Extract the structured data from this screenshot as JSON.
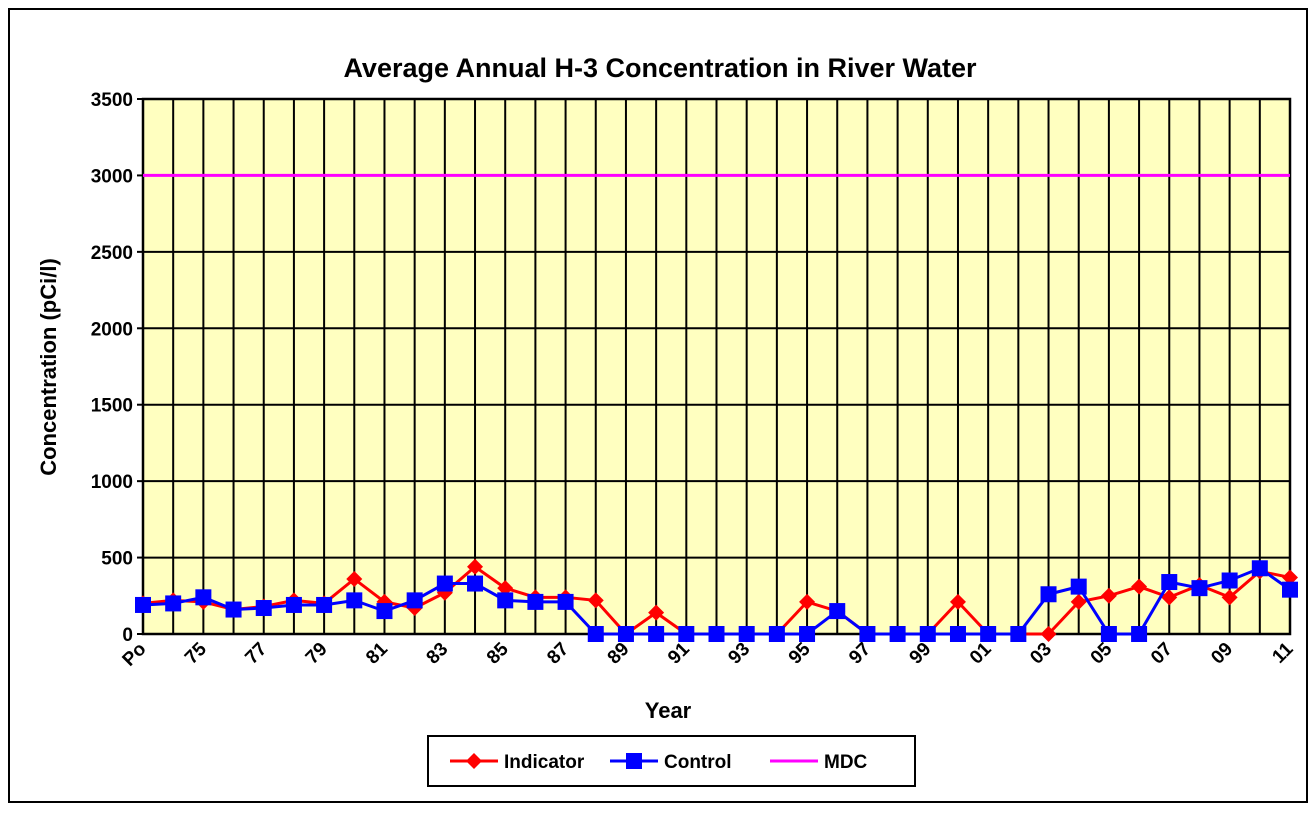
{
  "chart_data": {
    "type": "line",
    "title": "Average Annual H-3 Concentration in River Water",
    "x_label": "Year",
    "y_label": "Concentration (pCi/l)",
    "categories": [
      "Po",
      null,
      "75",
      null,
      "77",
      null,
      "79",
      null,
      "81",
      null,
      "83",
      null,
      "85",
      null,
      "87",
      null,
      "89",
      null,
      "91",
      null,
      "93",
      null,
      "95",
      null,
      "97",
      null,
      "99",
      null,
      "01",
      null,
      "03",
      null,
      "05",
      null,
      "07",
      null,
      "09",
      null,
      "11"
    ],
    "series": [
      {
        "name": "Indicator",
        "color": "#ff0000",
        "marker": "diamond",
        "values": [
          200,
          220,
          210,
          160,
          180,
          220,
          200,
          360,
          210,
          170,
          270,
          440,
          300,
          240,
          240,
          220,
          0,
          140,
          0,
          0,
          0,
          0,
          210,
          150,
          0,
          0,
          0,
          210,
          0,
          0,
          0,
          210,
          250,
          310,
          240,
          320,
          240,
          410,
          370
        ]
      },
      {
        "name": "Control",
        "color": "#0000ff",
        "marker": "square",
        "values": [
          190,
          200,
          240,
          160,
          170,
          190,
          190,
          220,
          150,
          220,
          330,
          330,
          220,
          210,
          210,
          0,
          0,
          0,
          0,
          0,
          0,
          0,
          0,
          150,
          0,
          0,
          0,
          0,
          0,
          0,
          260,
          310,
          0,
          0,
          340,
          300,
          350,
          430,
          290
        ]
      },
      {
        "name": "MDC",
        "color": "#ff00ff",
        "marker": "none",
        "values": [
          3000,
          3000,
          3000,
          3000,
          3000,
          3000,
          3000,
          3000,
          3000,
          3000,
          3000,
          3000,
          3000,
          3000,
          3000,
          3000,
          3000,
          3000,
          3000,
          3000,
          3000,
          3000,
          3000,
          3000,
          3000,
          3000,
          3000,
          3000,
          3000,
          3000,
          3000,
          3000,
          3000,
          3000,
          3000,
          3000,
          3000,
          3000,
          3000
        ]
      }
    ],
    "ylim": [
      0,
      3500
    ],
    "yticks": [
      0,
      500,
      1000,
      1500,
      2000,
      2500,
      3000,
      3500
    ],
    "grid": true,
    "legend": "bottom"
  }
}
